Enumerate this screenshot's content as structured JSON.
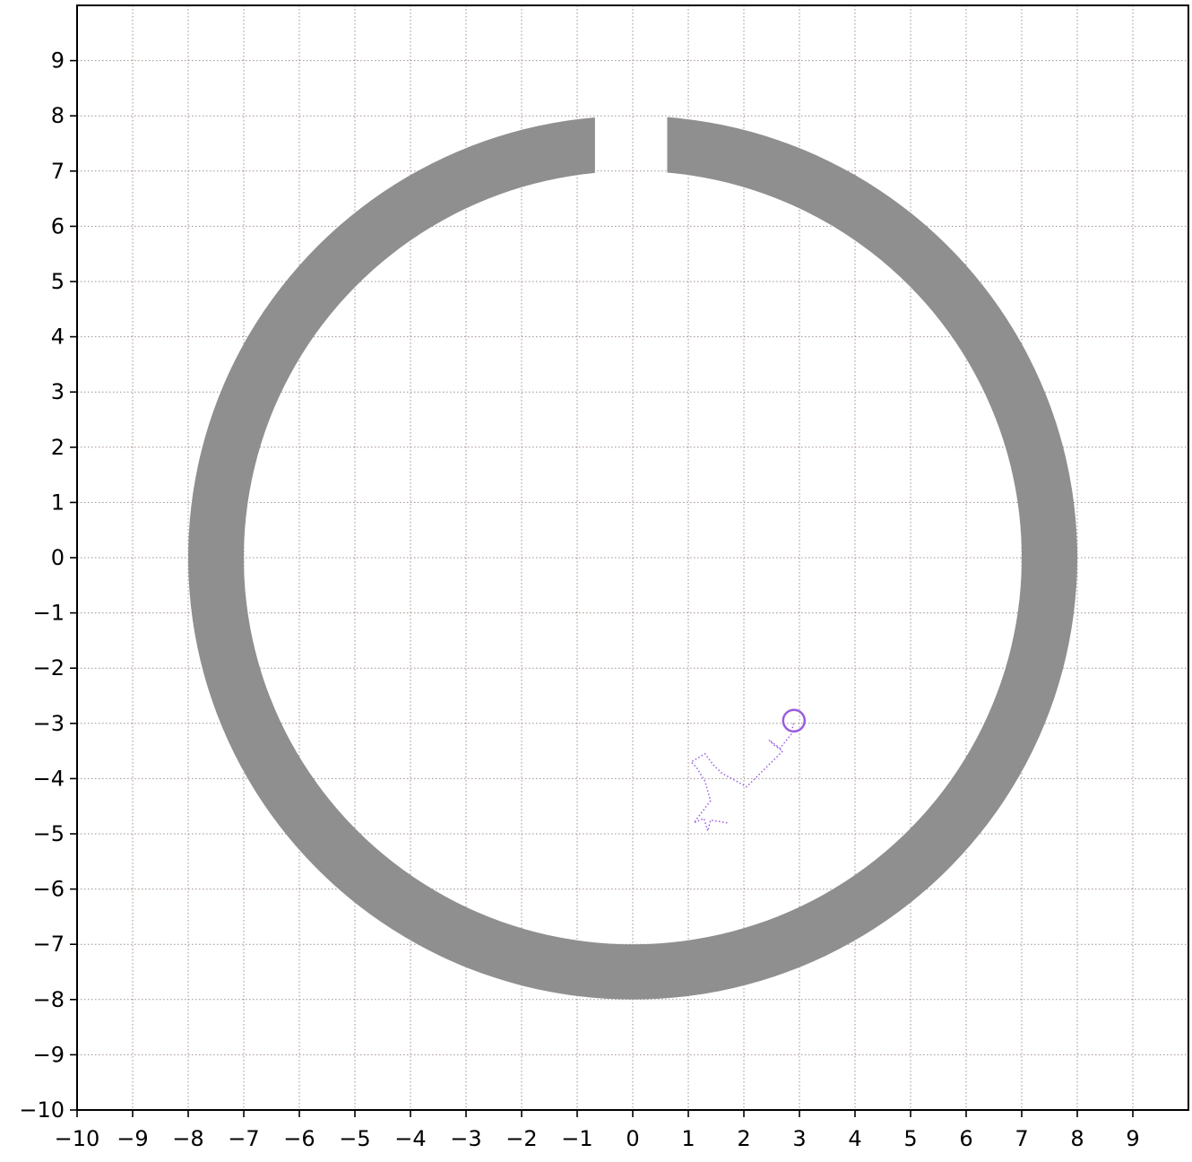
{
  "chart_data": {
    "type": "scatter",
    "xlim": [
      -10,
      10
    ],
    "ylim": [
      -10,
      10
    ],
    "grid": true,
    "x_tick_labels": [
      "−10",
      "−9",
      "−8",
      "−7",
      "−6",
      "−5",
      "−4",
      "−3",
      "−2",
      "−1",
      "0",
      "1",
      "2",
      "3",
      "4",
      "5",
      "6",
      "7",
      "8",
      "9"
    ],
    "x_tick_values": [
      -10,
      -9,
      -8,
      -7,
      -6,
      -5,
      -4,
      -3,
      -2,
      -1,
      0,
      1,
      2,
      3,
      4,
      5,
      6,
      7,
      8,
      9
    ],
    "y_tick_labels": [
      "−10",
      "−9",
      "−8",
      "−7",
      "−6",
      "−5",
      "−4",
      "−3",
      "−2",
      "−1",
      "0",
      "1",
      "2",
      "3",
      "4",
      "5",
      "6",
      "7",
      "8",
      "9"
    ],
    "y_tick_values": [
      -10,
      -9,
      -8,
      -7,
      -6,
      -5,
      -4,
      -3,
      -2,
      -1,
      0,
      1,
      2,
      3,
      4,
      5,
      6,
      7,
      8,
      9
    ],
    "ring": {
      "center": [
        0,
        0
      ],
      "inner_radius": 7,
      "outer_radius": 8,
      "gap_from_x": -0.68,
      "gap_to_x": 0.62,
      "color": "#8f8f8f"
    },
    "trajectory": {
      "color": "#9a5ce0",
      "style": "dotted",
      "points": [
        [
          1.7,
          -4.8
        ],
        [
          1.4,
          -4.75
        ],
        [
          1.35,
          -4.95
        ],
        [
          1.28,
          -4.72
        ],
        [
          1.1,
          -4.8
        ],
        [
          1.25,
          -4.6
        ],
        [
          1.4,
          -4.4
        ],
        [
          1.3,
          -4.05
        ],
        [
          1.15,
          -3.8
        ],
        [
          1.05,
          -3.7
        ],
        [
          1.3,
          -3.55
        ],
        [
          1.45,
          -3.75
        ],
        [
          1.6,
          -3.9
        ],
        [
          2.05,
          -4.15
        ],
        [
          2.35,
          -3.85
        ],
        [
          2.7,
          -3.5
        ],
        [
          2.55,
          -3.4
        ],
        [
          2.45,
          -3.3
        ],
        [
          2.65,
          -3.45
        ],
        [
          2.85,
          -3.2
        ],
        [
          2.9,
          -2.97
        ]
      ]
    },
    "marker": {
      "x": 2.9,
      "y": -2.95,
      "shape": "hollow-circle",
      "color": "#9a5ce0"
    }
  }
}
